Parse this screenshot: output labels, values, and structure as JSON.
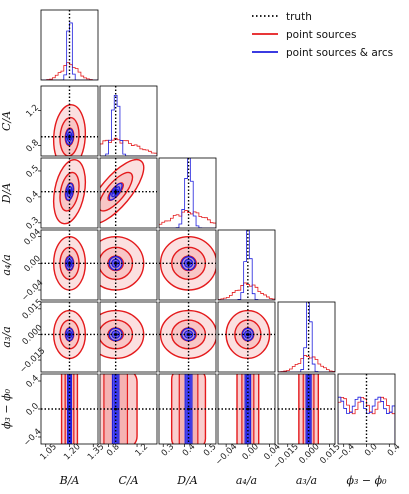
{
  "chart_data": {
    "type": "corner",
    "parameters": [
      {
        "label": "B/A",
        "truth": 1.2,
        "range": [
          1.02,
          1.38
        ],
        "ticks": [
          "1.05",
          "1.20",
          "1.35"
        ],
        "tick_values": [
          1.05,
          1.2,
          1.35
        ]
      },
      {
        "label": "C/A",
        "truth": 0.9,
        "range": [
          0.68,
          1.48
        ],
        "ticks": [
          "0.8",
          "1.2"
        ],
        "tick_values": [
          0.8,
          1.2
        ]
      },
      {
        "label": "D/A",
        "truth": 0.42,
        "range": [
          0.28,
          0.55
        ],
        "ticks": [
          "0.3",
          "0.4",
          "0.5"
        ],
        "tick_values": [
          0.3,
          0.4,
          0.5
        ]
      },
      {
        "label": "a₄/a",
        "truth": 0.0,
        "range": [
          -0.055,
          0.05
        ],
        "ticks": [
          "−0.04",
          "0.00",
          "0.04"
        ],
        "tick_values": [
          -0.04,
          0.0,
          0.04
        ]
      },
      {
        "label": "a₃/a",
        "truth": 0.0,
        "range": [
          -0.022,
          0.019
        ],
        "ticks": [
          "−0.015",
          "0.000",
          "0.015"
        ],
        "tick_values": [
          -0.015,
          0.0,
          0.015
        ]
      },
      {
        "label": "ϕ₃ − ϕ₀",
        "truth": 0.0,
        "range": [
          -0.5,
          0.5
        ],
        "ticks": [
          "−0.4",
          "0.0",
          "0.4"
        ],
        "tick_values": [
          -0.4,
          0.0,
          0.4
        ]
      }
    ],
    "y_axis_labels": [
      "C/A",
      "D/A",
      "a₄/a",
      "a₃/a",
      "ϕ₃ − ϕ₀"
    ],
    "y_ticks": [
      {
        "labels": [
          "0.8",
          "1.2"
        ],
        "values": [
          0.8,
          1.2
        ]
      },
      {
        "labels": [
          "0.3",
          "0.4",
          "0.5"
        ],
        "values": [
          0.3,
          0.4,
          0.5
        ]
      },
      {
        "labels": [
          "−0.04",
          "0.00",
          "0.04"
        ],
        "values": [
          -0.04,
          0.0,
          0.04
        ]
      },
      {
        "labels": [
          "−0.015",
          "0.000",
          "0.015"
        ],
        "values": [
          -0.015,
          0.0,
          0.015
        ]
      },
      {
        "labels": [
          "−0.4",
          "0.0",
          "0.4"
        ],
        "values": [
          -0.4,
          0.0,
          0.4
        ]
      }
    ],
    "series": [
      {
        "name": "point sources",
        "color": "#e41a1c",
        "fill": "#f4a6a6",
        "sigma": [
          0.05,
          0.3,
          0.08,
          0.02,
          0.007,
          1.0
        ]
      },
      {
        "name": "point sources & arcs",
        "color": "#1f1fdd",
        "fill": "#3a3aff",
        "sigma": [
          0.012,
          0.045,
          0.016,
          0.005,
          0.0018,
          0.8
        ]
      }
    ],
    "truth_line": {
      "name": "truth",
      "style": "dotted",
      "color": "#000000"
    },
    "legend": {
      "position": "top-right",
      "entries": [
        "truth",
        "point sources",
        "point sources & arcs"
      ]
    },
    "correlations": [
      [
        0,
        1,
        0.1
      ],
      [
        0,
        2,
        0.3
      ],
      [
        1,
        2,
        0.75
      ],
      [
        0,
        3,
        0.0
      ],
      [
        1,
        3,
        0.0
      ],
      [
        2,
        3,
        0.0
      ],
      [
        0,
        4,
        0.0
      ],
      [
        1,
        4,
        0.0
      ],
      [
        2,
        4,
        0.0
      ],
      [
        3,
        4,
        0.0
      ]
    ]
  }
}
